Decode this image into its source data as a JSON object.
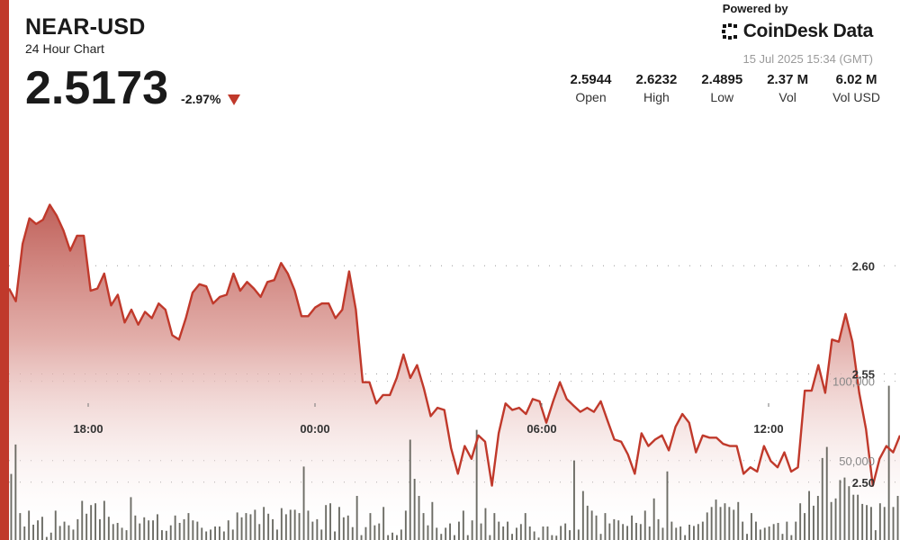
{
  "header": {
    "pair": "NEAR-USD",
    "subtitle": "24 Hour Chart",
    "price": "2.5173",
    "change": "-2.97%"
  },
  "brand": {
    "powered_by": "Powered by",
    "name": "CoinDesk Data",
    "timestamp": "15 Jul 2025 15:34 (GMT)"
  },
  "stats": [
    {
      "value": "2.5944",
      "label": "Open"
    },
    {
      "value": "2.6232",
      "label": "High"
    },
    {
      "value": "2.4895",
      "label": "Low"
    },
    {
      "value": "2.37 M",
      "label": "Vol"
    },
    {
      "value": "6.02 M",
      "label": "Vol USD"
    }
  ],
  "colors": {
    "accent": "#c0392b",
    "line": "#c0392b",
    "area_top": "#c0615a",
    "volume_bar": "#595951"
  },
  "icons": {
    "down_arrow": "triangle-down-icon",
    "brand_logo": "coindesk-logo-icon"
  },
  "chart_data": {
    "type": "line",
    "xlabel": "",
    "ylabel": "",
    "x_ticks": [
      "18:00",
      "00:00",
      "06:00",
      "12:00"
    ],
    "y_ticks": [
      "2.60",
      "2.55",
      "2.50"
    ],
    "volume_ticks": [
      "100,000",
      "50,000"
    ],
    "ylim": [
      2.4733,
      2.6729
    ],
    "volume_max": 144578,
    "grid": true,
    "series": [
      {
        "values": [
          2.5895,
          2.5836,
          2.6101,
          2.6219,
          2.6193,
          2.6213,
          2.6282,
          2.6232,
          2.6163,
          2.607,
          2.6139,
          2.6139,
          2.5885,
          2.5895,
          2.5964,
          2.5817,
          2.5866,
          2.5738,
          2.5797,
          2.5728,
          2.5787,
          2.5758,
          2.5826,
          2.5797,
          2.5679,
          2.5659,
          2.5758,
          2.5876,
          2.5915,
          2.5905,
          2.5826,
          2.5856,
          2.5866,
          2.5964,
          2.5885,
          2.5925,
          2.5895,
          2.5856,
          2.5925,
          2.5934,
          2.6013,
          2.5964,
          2.5886,
          2.5767,
          2.5767,
          2.5807,
          2.5826,
          2.5826,
          2.5758,
          2.5797,
          2.5974,
          2.5797,
          2.5462,
          2.5462,
          2.5364,
          2.5403,
          2.5403,
          2.5482,
          2.559,
          2.5482,
          2.5541,
          2.5433,
          2.5305,
          2.5344,
          2.5334,
          2.5157,
          2.5039,
          2.5167,
          2.5108,
          2.5216,
          2.5187,
          2.4984,
          2.5226,
          2.5364,
          2.5334,
          2.5344,
          2.5315,
          2.5384,
          2.5374,
          2.5275,
          2.5374,
          2.5462,
          2.5384,
          2.5354,
          2.5325,
          2.5344,
          2.5325,
          2.5374,
          2.5285,
          2.5197,
          2.5187,
          2.5128,
          2.5039,
          2.5226,
          2.5167,
          2.5197,
          2.5216,
          2.5147,
          2.5256,
          2.5315,
          2.5275,
          2.5138,
          2.5216,
          2.5206,
          2.5206,
          2.5177,
          2.5167,
          2.5167,
          2.5039,
          2.5069,
          2.5049,
          2.5167,
          2.5098,
          2.5069,
          2.5138,
          2.5049,
          2.5069,
          2.5423,
          2.5423,
          2.5541,
          2.5413,
          2.5659,
          2.5649,
          2.5777,
          2.5649,
          2.5413,
          2.5246,
          2.4984,
          2.5108,
          2.5167,
          2.5138,
          2.5216
        ]
      },
      {
        "name": "Volume",
        "values": [
          41637,
          60145,
          16961,
          8482,
          18505,
          9639,
          12339,
          14653,
          1928,
          4627,
          18505,
          8867,
          11567,
          9253,
          6554,
          13111,
          24677,
          16575,
          21972,
          23135,
          13111,
          24677,
          14653,
          10025,
          10795,
          7710,
          6169,
          26991,
          15421,
          10410,
          14266,
          12339,
          12339,
          16190,
          6169,
          5783,
          9253,
          15421,
          10795,
          13111,
          16961,
          12339,
          11567,
          7710,
          5398,
          6554,
          8482,
          8482,
          5398,
          12339,
          6554,
          17348,
          14266,
          16961,
          16190,
          19043,
          10025,
          20820,
          16575,
          13111,
          6554,
          20045,
          16190,
          19043,
          19043,
          16961,
          46263,
          18505,
          11567,
          13111,
          6554,
          21975,
          23132,
          5398,
          20820,
          14266,
          15421,
          8096,
          27761,
          3084,
          8096,
          16961,
          9253,
          10410,
          20820,
          3084,
          4627,
          3084,
          6554,
          18505,
          63221,
          38550,
          27761,
          16961,
          9253,
          23909,
          7710,
          3854,
          7710,
          10410,
          3084,
          11567,
          18505,
          3084,
          12339,
          69389,
          10410,
          20045,
          3084,
          16961,
          11567,
          8482,
          11567,
          3854,
          7710,
          10025,
          16961,
          8482,
          5398,
          1542,
          8482,
          8482,
          3084,
          2699,
          8867,
          10410,
          6169,
          50122,
          6554,
          30843,
          21589,
          18505,
          15421,
          3854,
          16961,
          10410,
          13111,
          12339,
          10025,
          8867,
          15421,
          10795,
          10025,
          18505,
          8482,
          26220,
          13111,
          7710,
          43180,
          11567,
          7710,
          8482,
          3084,
          9639,
          8867,
          10025,
          11567,
          17348,
          20820,
          25448,
          20820,
          23132,
          20820,
          19043,
          23909,
          11567,
          3854,
          16961,
          11567,
          6554,
          7710,
          8482,
          10025,
          10795,
          3854,
          11567,
          3084,
          11567,
          23135,
          16961,
          30843,
          21589,
          27761,
          51669,
          58606,
          23909,
          26220,
          37778,
          39323,
          33920,
          28532,
          28532,
          22744,
          21972,
          20820,
          6169,
          23132,
          20820,
          97163,
          20820,
          27758
        ]
      }
    ]
  }
}
